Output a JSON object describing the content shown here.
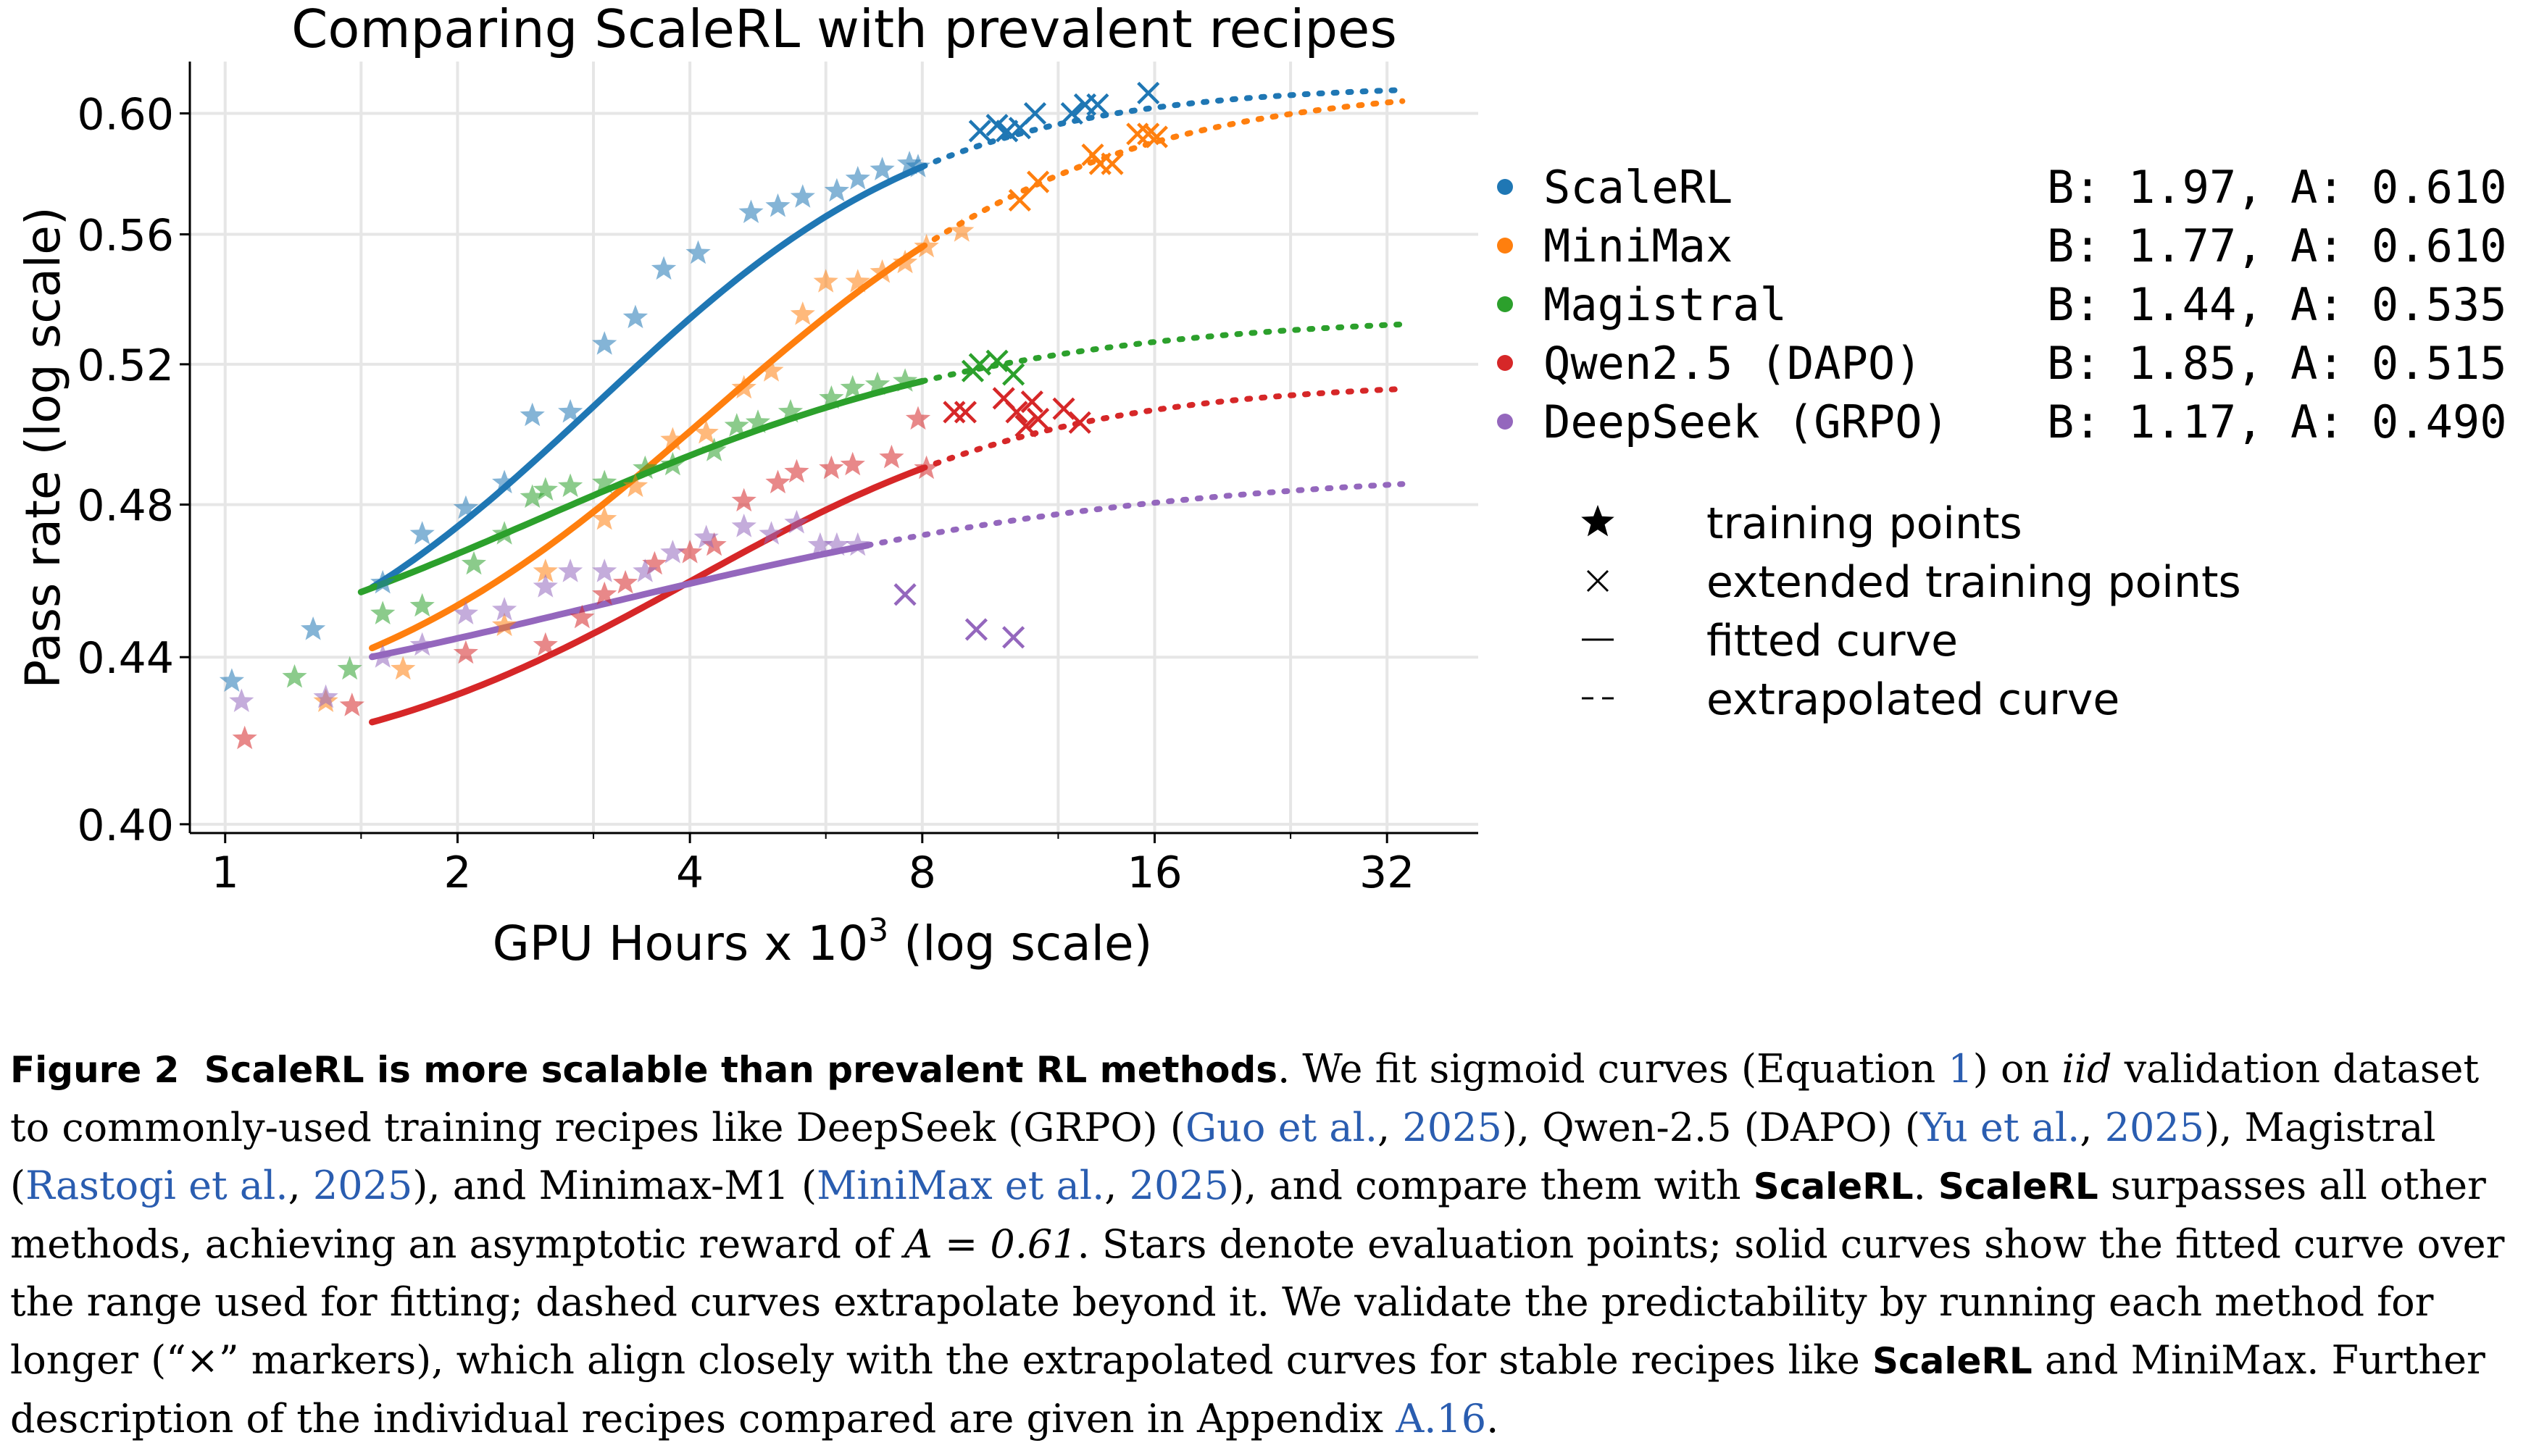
{
  "chart_data": {
    "type": "scatter",
    "title": "Comparing ScaleRL with prevalent recipes",
    "xlabel": "GPU Hours x 10",
    "xlabel_sup": "3",
    "xlabel_suffix": " (log scale)",
    "ylabel": "Pass rate (log scale)",
    "x_scale": "log2",
    "y_scale": "log",
    "xlim": [
      0.9,
      42
    ],
    "ylim": [
      0.398,
      0.618
    ],
    "x_ticks": [
      1,
      2,
      4,
      8,
      16,
      32
    ],
    "x_tick_labels": [
      "1",
      "2",
      "4",
      "8",
      "16",
      "32"
    ],
    "y_ticks": [
      0.4,
      0.44,
      0.48,
      0.52,
      0.56,
      0.6
    ],
    "y_tick_labels": [
      "0.40",
      "0.44",
      "0.48",
      "0.52",
      "0.56",
      "0.60"
    ],
    "grid": true,
    "legend_position": "right",
    "series": [
      {
        "name": "ScaleRL",
        "params": "B: 1.97, A: 0.610",
        "color": "#1f77b4",
        "training_points": [
          [
            1.02,
            0.434
          ],
          [
            1.3,
            0.447
          ],
          [
            1.6,
            0.459
          ],
          [
            1.8,
            0.472
          ],
          [
            2.05,
            0.479
          ],
          [
            2.3,
            0.486
          ],
          [
            2.5,
            0.505
          ],
          [
            2.8,
            0.506
          ],
          [
            3.1,
            0.526
          ],
          [
            3.4,
            0.534
          ],
          [
            3.7,
            0.549
          ],
          [
            4.1,
            0.554
          ],
          [
            4.8,
            0.567
          ],
          [
            5.2,
            0.569
          ],
          [
            5.6,
            0.572
          ],
          [
            6.2,
            0.574
          ],
          [
            6.6,
            0.578
          ],
          [
            7.1,
            0.581
          ],
          [
            7.7,
            0.583
          ],
          [
            7.9,
            0.582
          ]
        ],
        "extended_points": [
          [
            9.5,
            0.594
          ],
          [
            10.0,
            0.596
          ],
          [
            10.3,
            0.594
          ],
          [
            10.7,
            0.595
          ],
          [
            11.2,
            0.6
          ],
          [
            12.5,
            0.6
          ],
          [
            13.0,
            0.603
          ],
          [
            13.5,
            0.603
          ],
          [
            15.7,
            0.607
          ]
        ],
        "fit_range": [
          1.55,
          8.0
        ],
        "extrap_range": [
          8.0,
          33.5
        ]
      },
      {
        "name": "MiniMax",
        "params": "B: 1.77, A: 0.610",
        "color": "#ff7f0e",
        "training_points": [
          [
            1.35,
            0.429
          ],
          [
            1.7,
            0.437
          ],
          [
            2.3,
            0.448
          ],
          [
            2.6,
            0.462
          ],
          [
            3.1,
            0.476
          ],
          [
            3.4,
            0.485
          ],
          [
            3.8,
            0.498
          ],
          [
            4.2,
            0.5
          ],
          [
            4.7,
            0.513
          ],
          [
            5.1,
            0.518
          ],
          [
            5.6,
            0.535
          ],
          [
            6.0,
            0.545
          ],
          [
            6.6,
            0.545
          ],
          [
            7.1,
            0.548
          ],
          [
            7.6,
            0.551
          ],
          [
            8.1,
            0.556
          ],
          [
            9.0,
            0.561
          ]
        ],
        "extended_points": [
          [
            10.7,
            0.571
          ],
          [
            11.3,
            0.577
          ],
          [
            13.3,
            0.586
          ],
          [
            13.6,
            0.583
          ],
          [
            14.1,
            0.583
          ],
          [
            15.2,
            0.593
          ],
          [
            15.7,
            0.593
          ],
          [
            16.1,
            0.592
          ]
        ],
        "fit_range": [
          1.55,
          8.0
        ],
        "extrap_range": [
          8.0,
          33.5
        ]
      },
      {
        "name": "Magistral",
        "params": "B: 1.44, A: 0.535",
        "color": "#2ca02c",
        "training_points": [
          [
            1.23,
            0.435
          ],
          [
            1.45,
            0.437
          ],
          [
            1.6,
            0.451
          ],
          [
            1.8,
            0.453
          ],
          [
            2.1,
            0.464
          ],
          [
            2.3,
            0.472
          ],
          [
            2.5,
            0.482
          ],
          [
            2.6,
            0.484
          ],
          [
            2.8,
            0.485
          ],
          [
            3.1,
            0.486
          ],
          [
            3.5,
            0.49
          ],
          [
            3.8,
            0.491
          ],
          [
            4.3,
            0.495
          ],
          [
            4.6,
            0.502
          ],
          [
            4.9,
            0.503
          ],
          [
            5.4,
            0.506
          ],
          [
            6.1,
            0.51
          ],
          [
            6.5,
            0.513
          ],
          [
            7.0,
            0.514
          ],
          [
            7.6,
            0.515
          ]
        ],
        "extended_points": [
          [
            9.3,
            0.518
          ],
          [
            9.5,
            0.52
          ],
          [
            10.0,
            0.521
          ],
          [
            10.5,
            0.517
          ]
        ],
        "fit_range": [
          1.5,
          8.0
        ],
        "extrap_range": [
          8.0,
          33.5
        ]
      },
      {
        "name": "Qwen2.5 (DAPO)",
        "params": "B: 1.85, A: 0.515",
        "color": "#d62728",
        "training_points": [
          [
            1.06,
            0.42
          ],
          [
            1.46,
            0.428
          ],
          [
            2.05,
            0.441
          ],
          [
            2.6,
            0.443
          ],
          [
            2.9,
            0.45
          ],
          [
            3.1,
            0.456
          ],
          [
            3.3,
            0.459
          ],
          [
            3.6,
            0.464
          ],
          [
            4.0,
            0.467
          ],
          [
            4.3,
            0.469
          ],
          [
            4.7,
            0.481
          ],
          [
            5.2,
            0.486
          ],
          [
            5.5,
            0.489
          ],
          [
            6.1,
            0.49
          ],
          [
            6.5,
            0.491
          ],
          [
            7.3,
            0.493
          ],
          [
            7.9,
            0.504
          ],
          [
            8.1,
            0.49
          ]
        ],
        "extended_points": [
          [
            8.8,
            0.506
          ],
          [
            9.1,
            0.506
          ],
          [
            10.2,
            0.51
          ],
          [
            10.6,
            0.506
          ],
          [
            11.1,
            0.509
          ],
          [
            10.9,
            0.502
          ],
          [
            11.3,
            0.504
          ],
          [
            12.2,
            0.507
          ],
          [
            12.8,
            0.503
          ]
        ],
        "fit_range": [
          1.55,
          8.0
        ],
        "extrap_range": [
          8.0,
          33.5
        ]
      },
      {
        "name": "DeepSeek (GRPO)",
        "params": "B: 1.17, A: 0.490",
        "color": "#9467bd",
        "training_points": [
          [
            1.05,
            0.429
          ],
          [
            1.35,
            0.43
          ],
          [
            1.6,
            0.44
          ],
          [
            1.8,
            0.443
          ],
          [
            2.05,
            0.451
          ],
          [
            2.3,
            0.452
          ],
          [
            2.6,
            0.458
          ],
          [
            2.8,
            0.462
          ],
          [
            3.1,
            0.462
          ],
          [
            3.5,
            0.462
          ],
          [
            3.8,
            0.467
          ],
          [
            4.2,
            0.471
          ],
          [
            4.7,
            0.474
          ],
          [
            5.1,
            0.472
          ],
          [
            5.5,
            0.475
          ],
          [
            5.9,
            0.469
          ],
          [
            6.2,
            0.469
          ],
          [
            6.6,
            0.469
          ]
        ],
        "extended_points": [
          [
            7.6,
            0.456
          ],
          [
            9.4,
            0.447
          ],
          [
            10.5,
            0.445
          ]
        ],
        "fit_range": [
          1.55,
          6.8
        ],
        "extrap_range": [
          6.8,
          33.5
        ]
      }
    ],
    "marker_legend": [
      {
        "symbol": "★",
        "label": "training points"
      },
      {
        "symbol": "×",
        "label": "extended training points"
      },
      {
        "symbol": "—",
        "label": "fitted curve"
      },
      {
        "symbol": "--",
        "label": "extrapolated curve"
      }
    ]
  },
  "caption": {
    "label": "Figure 2",
    "headline": "ScaleRL is more scalable than prevalent RL methods",
    "t1": ". We fit sigmoid curves (Equation ",
    "eq_ref": "1",
    "t2": ") on ",
    "iid": "iid",
    "t3": " validation dataset to commonly-used training recipes like DeepSeek (GRPO) (",
    "cite_guo": "Guo et al.",
    "t4": ", ",
    "year_guo": "2025",
    "t5": "), Qwen-2.5 (DAPO) (",
    "cite_yu": "Yu et al.",
    "t6": ", ",
    "year_yu": "2025",
    "t7": "), Magistral (",
    "cite_rastogi": "Rastogi et al.",
    "t8": ", ",
    "year_rastogi": "2025",
    "t9": "), and Minimax-M1 (",
    "cite_minimax": "MiniMax et al.",
    "t10": ", ",
    "year_minimax": "2025",
    "t11": "), and compare them with ",
    "bold1": "ScaleRL",
    "t12": ". ",
    "bold2": "ScaleRL",
    "t13": " surpasses all other methods, achieving an asymptotic reward of ",
    "math": "A = 0.61",
    "t14": ". Stars denote evaluation points; solid curves show the fitted curve over the range used for fitting; dashed curves extrapolate beyond it. We validate the predictability by running each method for longer (“×” markers), which align closely with the extrapolated curves for stable recipes like ",
    "bold3": "ScaleRL",
    "t15": " and MiniMax. Further description of the individual recipes compared are given in Appendix ",
    "appendix_ref": "A.16",
    "t16": "."
  }
}
